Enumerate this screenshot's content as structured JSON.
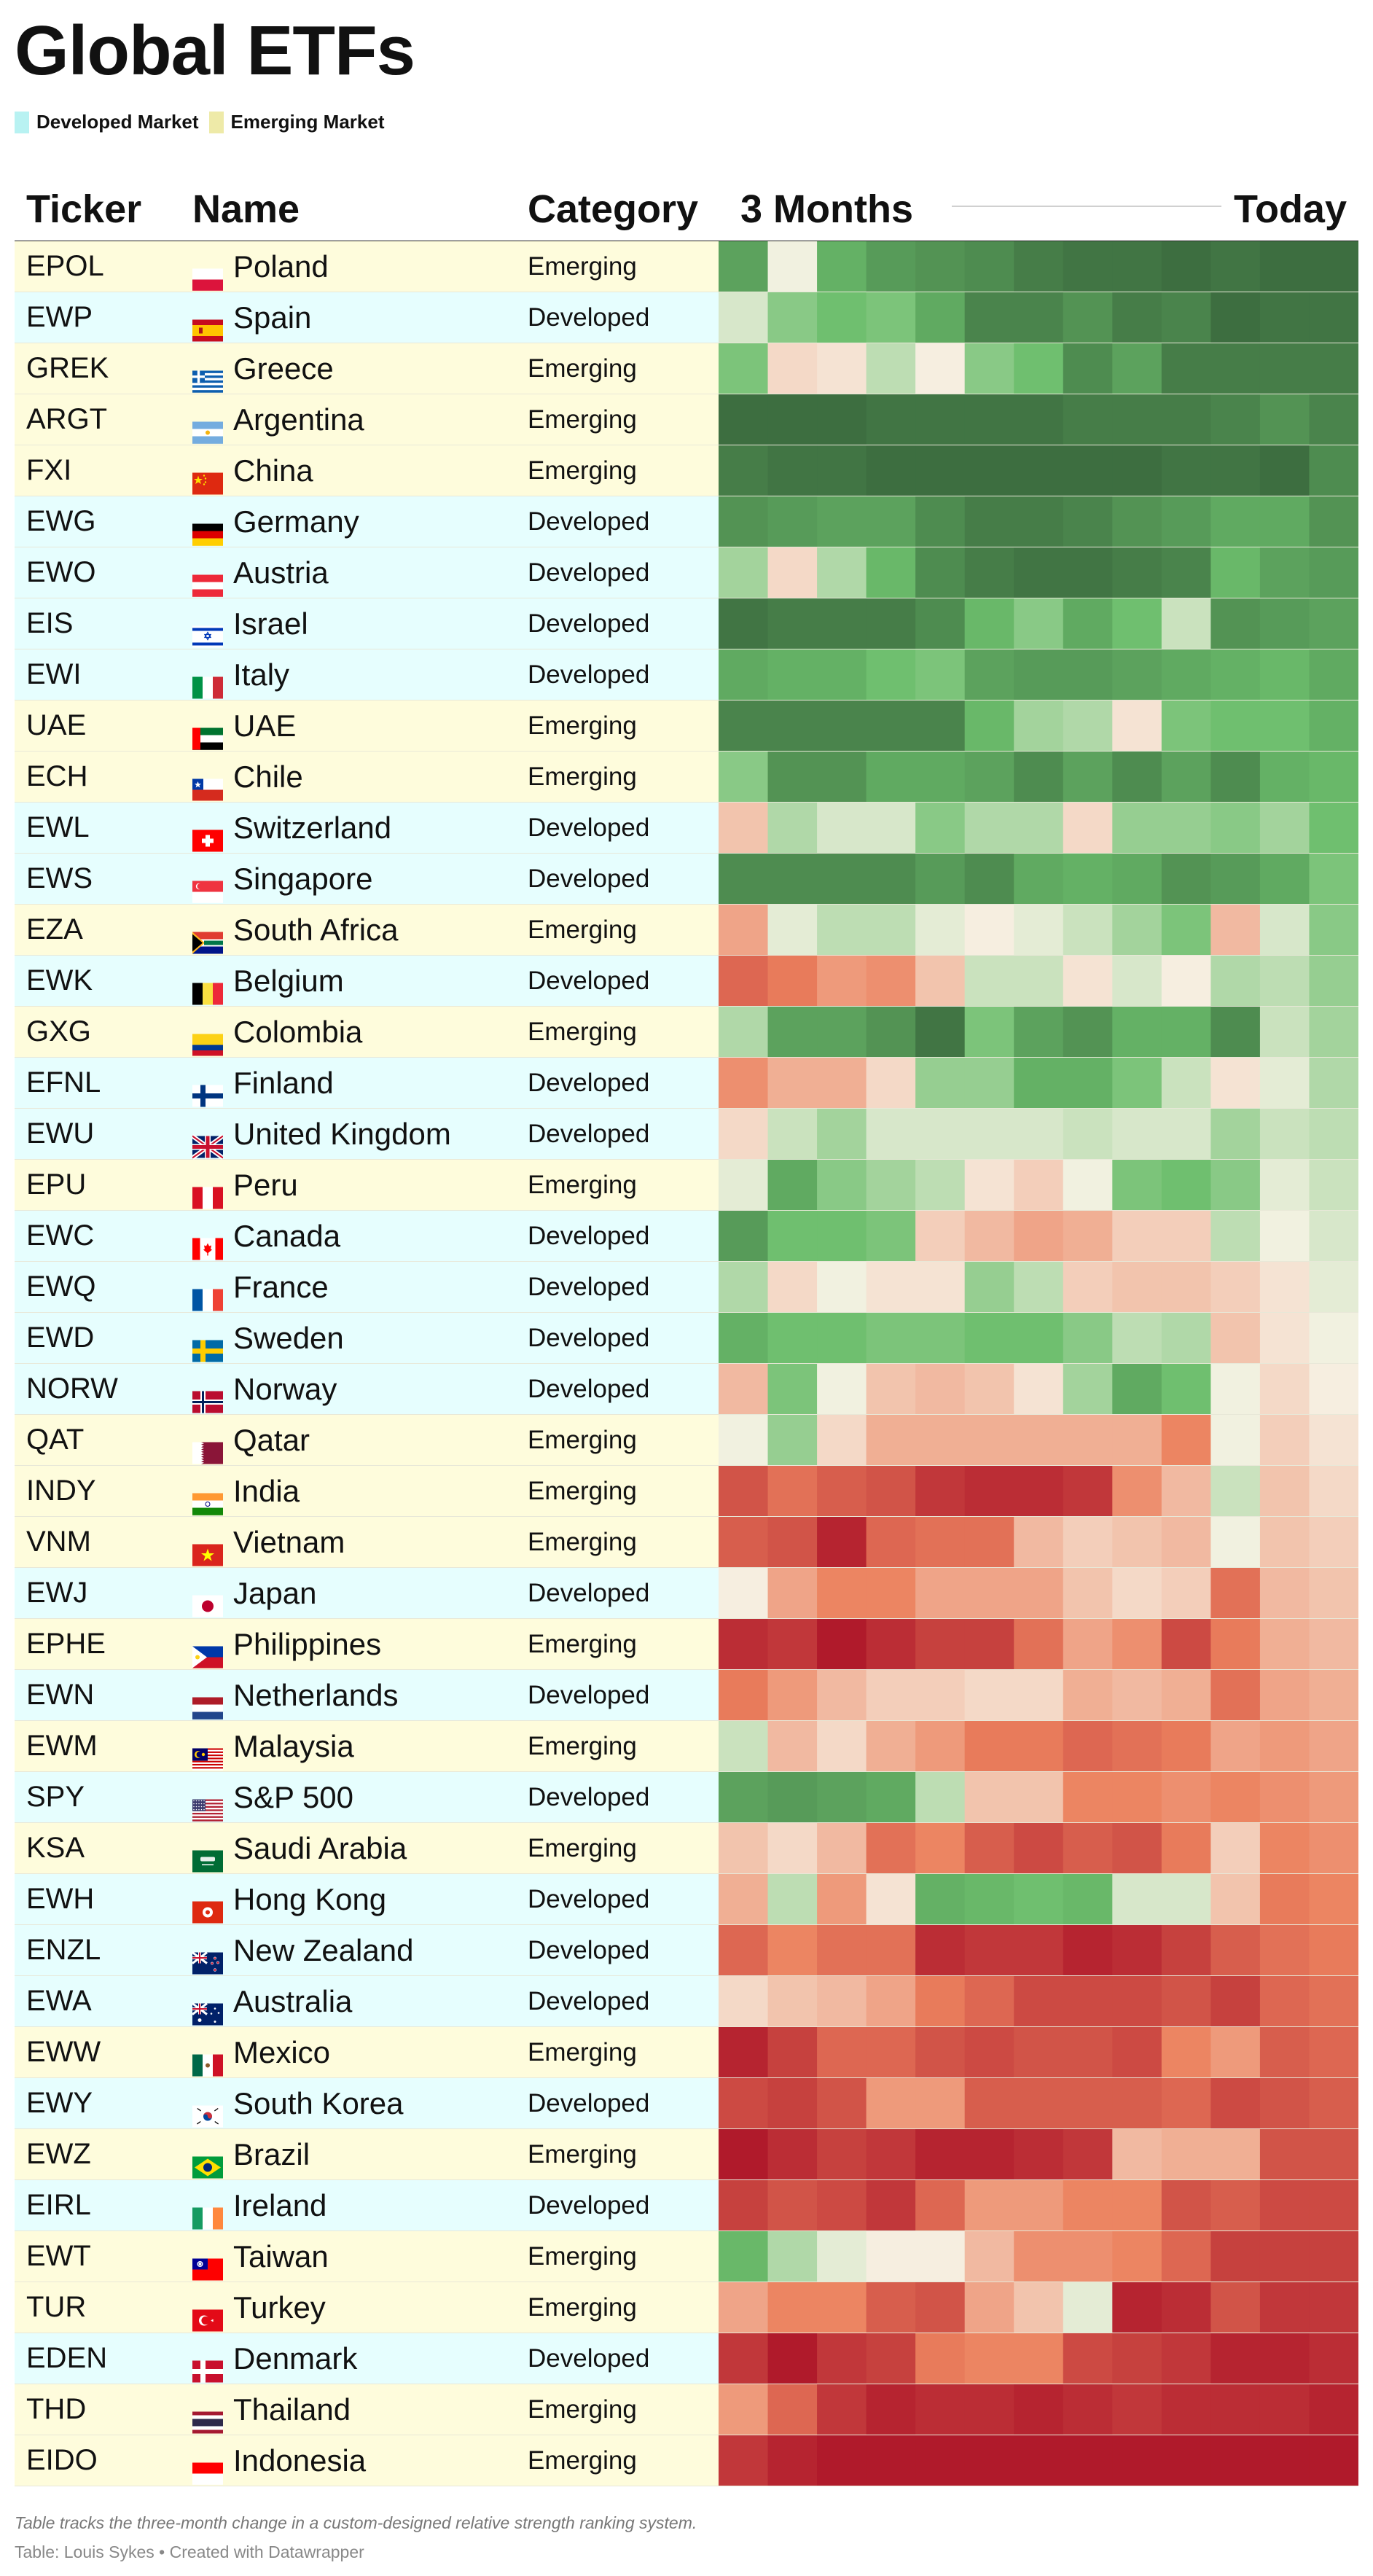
{
  "title": "Global ETFs",
  "legend": [
    {
      "label": "Developed Market",
      "color": "#e4fdfd"
    },
    {
      "label": "Emerging Market",
      "color": "#eeeaa8"
    }
  ],
  "colors": {
    "developed_row": "#e6fefe",
    "emerging_row": "#fefcdc"
  },
  "headers": {
    "ticker": "Ticker",
    "name": "Name",
    "category": "Category",
    "start": "3 Months",
    "end": "Today"
  },
  "caption": "Table tracks the three-month change in a custom-designed relative strength ranking system.",
  "source": "Table: Louis Sykes • Created with Datawrapper",
  "rows": [
    {
      "ticker": "EPOL",
      "name": "Poland",
      "category": "Emerging",
      "flag": "flag-poland"
    },
    {
      "ticker": "EWP",
      "name": "Spain",
      "category": "Developed",
      "flag": "flag-spain"
    },
    {
      "ticker": "GREK",
      "name": "Greece",
      "category": "Emerging",
      "flag": "flag-greece"
    },
    {
      "ticker": "ARGT",
      "name": "Argentina",
      "category": "Emerging",
      "flag": "flag-argentina"
    },
    {
      "ticker": "FXI",
      "name": "China",
      "category": "Emerging",
      "flag": "flag-china"
    },
    {
      "ticker": "EWG",
      "name": "Germany",
      "category": "Developed",
      "flag": "flag-germany"
    },
    {
      "ticker": "EWO",
      "name": "Austria",
      "category": "Developed",
      "flag": "flag-austria"
    },
    {
      "ticker": "EIS",
      "name": "Israel",
      "category": "Developed",
      "flag": "flag-israel"
    },
    {
      "ticker": "EWI",
      "name": "Italy",
      "category": "Developed",
      "flag": "flag-italy"
    },
    {
      "ticker": "UAE",
      "name": "UAE",
      "category": "Emerging",
      "flag": "flag-uae"
    },
    {
      "ticker": "ECH",
      "name": "Chile",
      "category": "Emerging",
      "flag": "flag-chile"
    },
    {
      "ticker": "EWL",
      "name": "Switzerland",
      "category": "Developed",
      "flag": "flag-switzerland"
    },
    {
      "ticker": "EWS",
      "name": "Singapore",
      "category": "Developed",
      "flag": "flag-singapore"
    },
    {
      "ticker": "EZA",
      "name": "South Africa",
      "category": "Emerging",
      "flag": "flag-south-africa"
    },
    {
      "ticker": "EWK",
      "name": "Belgium",
      "category": "Developed",
      "flag": "flag-belgium"
    },
    {
      "ticker": "GXG",
      "name": "Colombia",
      "category": "Emerging",
      "flag": "flag-colombia"
    },
    {
      "ticker": "EFNL",
      "name": "Finland",
      "category": "Developed",
      "flag": "flag-finland"
    },
    {
      "ticker": "EWU",
      "name": "United Kingdom",
      "category": "Developed",
      "flag": "flag-uk"
    },
    {
      "ticker": "EPU",
      "name": "Peru",
      "category": "Emerging",
      "flag": "flag-peru"
    },
    {
      "ticker": "EWC",
      "name": "Canada",
      "category": "Developed",
      "flag": "flag-canada"
    },
    {
      "ticker": "EWQ",
      "name": "France",
      "category": "Developed",
      "flag": "flag-france"
    },
    {
      "ticker": "EWD",
      "name": "Sweden",
      "category": "Developed",
      "flag": "flag-sweden"
    },
    {
      "ticker": "NORW",
      "name": "Norway",
      "category": "Developed",
      "flag": "flag-norway"
    },
    {
      "ticker": "QAT",
      "name": "Qatar",
      "category": "Emerging",
      "flag": "flag-qatar"
    },
    {
      "ticker": "INDY",
      "name": "India",
      "category": "Emerging",
      "flag": "flag-india"
    },
    {
      "ticker": "VNM",
      "name": "Vietnam",
      "category": "Emerging",
      "flag": "flag-vietnam"
    },
    {
      "ticker": "EWJ",
      "name": "Japan",
      "category": "Developed",
      "flag": "flag-japan"
    },
    {
      "ticker": "EPHE",
      "name": "Philippines",
      "category": "Emerging",
      "flag": "flag-philippines"
    },
    {
      "ticker": "EWN",
      "name": "Netherlands",
      "category": "Developed",
      "flag": "flag-netherlands"
    },
    {
      "ticker": "EWM",
      "name": "Malaysia",
      "category": "Emerging",
      "flag": "flag-malaysia"
    },
    {
      "ticker": "SPY",
      "name": "S&P 500",
      "category": "Developed",
      "flag": "flag-usa"
    },
    {
      "ticker": "KSA",
      "name": "Saudi Arabia",
      "category": "Emerging",
      "flag": "flag-saudi-arabia"
    },
    {
      "ticker": "EWH",
      "name": "Hong Kong",
      "category": "Developed",
      "flag": "flag-hong-kong"
    },
    {
      "ticker": "ENZL",
      "name": "New Zealand",
      "category": "Developed",
      "flag": "flag-new-zealand"
    },
    {
      "ticker": "EWA",
      "name": "Australia",
      "category": "Developed",
      "flag": "flag-australia"
    },
    {
      "ticker": "EWW",
      "name": "Mexico",
      "category": "Emerging",
      "flag": "flag-mexico"
    },
    {
      "ticker": "EWY",
      "name": "South Korea",
      "category": "Developed",
      "flag": "flag-south-korea"
    },
    {
      "ticker": "EWZ",
      "name": "Brazil",
      "category": "Emerging",
      "flag": "flag-brazil"
    },
    {
      "ticker": "EIRL",
      "name": "Ireland",
      "category": "Developed",
      "flag": "flag-ireland"
    },
    {
      "ticker": "EWT",
      "name": "Taiwan",
      "category": "Emerging",
      "flag": "flag-taiwan"
    },
    {
      "ticker": "TUR",
      "name": "Turkey",
      "category": "Emerging",
      "flag": "flag-turkey"
    },
    {
      "ticker": "EDEN",
      "name": "Denmark",
      "category": "Developed",
      "flag": "flag-denmark"
    },
    {
      "ticker": "THD",
      "name": "Thailand",
      "category": "Emerging",
      "flag": "flag-thailand"
    },
    {
      "ticker": "EIDO",
      "name": "Indonesia",
      "category": "Emerging",
      "flag": "flag-indonesia"
    }
  ],
  "chart_data": {
    "type": "heatmap",
    "x": [
      "3 Months",
      "",
      "",
      "",
      "",
      "",
      "",
      "",
      "",
      "",
      "",
      "",
      "Today"
    ],
    "y": [
      "EPOL",
      "EWP",
      "GREK",
      "ARGT",
      "FXI",
      "EWG",
      "EWO",
      "EIS",
      "EWI",
      "UAE",
      "ECH",
      "EWL",
      "EWS",
      "EZA",
      "EWK",
      "GXG",
      "EFNL",
      "EWU",
      "EPU",
      "EWC",
      "EWQ",
      "EWD",
      "NORW",
      "QAT",
      "INDY",
      "VNM",
      "EWJ",
      "EPHE",
      "EWN",
      "EWM",
      "SPY",
      "KSA",
      "EWH",
      "ENZL",
      "EWA",
      "EWW",
      "EWY",
      "EWZ",
      "EIRL",
      "EWT",
      "TUR",
      "EDEN",
      "THD",
      "EIDO"
    ],
    "scale": {
      "min": 1,
      "max": 44,
      "low_color": "#3d6e40",
      "mid_color": "#f7f3e6",
      "high_color": "#b01a2b"
    },
    "values": [
      [
        8,
        22,
        10,
        7,
        6,
        5,
        3,
        2,
        2,
        1,
        2,
        1,
        1
      ],
      [
        20,
        14,
        12,
        13,
        9,
        4,
        4,
        6,
        3,
        4,
        1,
        2,
        2
      ],
      [
        13,
        25,
        24,
        18,
        23,
        14,
        12,
        5,
        8,
        3,
        3,
        3,
        3
      ],
      [
        1,
        1,
        1,
        2,
        2,
        2,
        2,
        3,
        3,
        3,
        4,
        6,
        4
      ],
      [
        3,
        2,
        2,
        1,
        1,
        1,
        1,
        1,
        1,
        2,
        2,
        1,
        5
      ],
      [
        6,
        7,
        8,
        8,
        5,
        3,
        3,
        4,
        6,
        7,
        9,
        9,
        6
      ],
      [
        16,
        25,
        17,
        11,
        5,
        3,
        2,
        2,
        3,
        4,
        11,
        8,
        7
      ],
      [
        2,
        3,
        3,
        3,
        5,
        11,
        14,
        9,
        12,
        19,
        6,
        7,
        8
      ],
      [
        9,
        10,
        10,
        12,
        13,
        8,
        7,
        7,
        8,
        9,
        10,
        11,
        9
      ],
      [
        4,
        4,
        4,
        4,
        4,
        11,
        16,
        17,
        24,
        13,
        12,
        12,
        10
      ],
      [
        14,
        6,
        6,
        9,
        9,
        8,
        5,
        8,
        5,
        8,
        5,
        10,
        11
      ],
      [
        27,
        17,
        20,
        20,
        14,
        17,
        17,
        25,
        15,
        15,
        14,
        16,
        12
      ],
      [
        5,
        5,
        5,
        5,
        7,
        5,
        9,
        10,
        9,
        6,
        7,
        9,
        13
      ],
      [
        30,
        21,
        18,
        18,
        21,
        23,
        21,
        19,
        16,
        13,
        28,
        20,
        14
      ],
      [
        36,
        34,
        31,
        32,
        27,
        19,
        19,
        24,
        20,
        23,
        17,
        18,
        15
      ],
      [
        17,
        8,
        8,
        6,
        2,
        13,
        8,
        6,
        10,
        10,
        5,
        19,
        16
      ],
      [
        32,
        29,
        29,
        25,
        15,
        15,
        10,
        10,
        13,
        19,
        24,
        21,
        17
      ],
      [
        25,
        19,
        16,
        20,
        20,
        20,
        20,
        19,
        20,
        20,
        16,
        19,
        18
      ],
      [
        21,
        9,
        14,
        16,
        18,
        24,
        26,
        22,
        13,
        12,
        14,
        21,
        19
      ],
      [
        7,
        12,
        12,
        13,
        26,
        28,
        30,
        29,
        26,
        26,
        18,
        22,
        20
      ],
      [
        17,
        25,
        22,
        24,
        24,
        15,
        18,
        26,
        27,
        27,
        26,
        24,
        21
      ],
      [
        10,
        12,
        12,
        13,
        13,
        12,
        12,
        14,
        18,
        17,
        27,
        24,
        22
      ],
      [
        28,
        13,
        22,
        27,
        28,
        27,
        24,
        16,
        9,
        12,
        22,
        25,
        23
      ],
      [
        22,
        15,
        25,
        29,
        29,
        29,
        29,
        29,
        29,
        33,
        22,
        26,
        24
      ],
      [
        38,
        35,
        37,
        38,
        41,
        42,
        42,
        41,
        32,
        28,
        19,
        27,
        25
      ],
      [
        37,
        38,
        43,
        36,
        35,
        35,
        28,
        26,
        27,
        28,
        22,
        27,
        26
      ],
      [
        23,
        30,
        33,
        33,
        30,
        30,
        30,
        27,
        25,
        26,
        35,
        28,
        27
      ],
      [
        42,
        41,
        44,
        42,
        40,
        40,
        35,
        30,
        32,
        39,
        34,
        29,
        28
      ],
      [
        34,
        31,
        28,
        26,
        26,
        25,
        25,
        29,
        28,
        29,
        35,
        30,
        29
      ],
      [
        19,
        28,
        25,
        29,
        31,
        34,
        34,
        36,
        35,
        34,
        30,
        31,
        30
      ],
      [
        8,
        7,
        8,
        9,
        18,
        27,
        27,
        33,
        33,
        32,
        33,
        32,
        31
      ],
      [
        27,
        25,
        28,
        35,
        33,
        37,
        39,
        37,
        38,
        34,
        26,
        33,
        32
      ],
      [
        29,
        18,
        31,
        24,
        10,
        11,
        12,
        11,
        20,
        20,
        27,
        34,
        33
      ],
      [
        36,
        33,
        35,
        35,
        42,
        41,
        41,
        43,
        42,
        40,
        37,
        35,
        34
      ],
      [
        25,
        27,
        28,
        30,
        34,
        36,
        39,
        39,
        39,
        38,
        40,
        36,
        35
      ],
      [
        43,
        40,
        36,
        36,
        38,
        39,
        38,
        38,
        39,
        33,
        31,
        37,
        36
      ],
      [
        39,
        40,
        38,
        31,
        31,
        37,
        37,
        37,
        37,
        36,
        39,
        38,
        37
      ],
      [
        44,
        42,
        40,
        41,
        43,
        43,
        42,
        41,
        28,
        29,
        29,
        38,
        38
      ],
      [
        40,
        38,
        39,
        41,
        36,
        31,
        31,
        33,
        33,
        38,
        37,
        39,
        39
      ],
      [
        11,
        17,
        21,
        23,
        23,
        28,
        32,
        32,
        33,
        36,
        40,
        40,
        40
      ],
      [
        30,
        33,
        33,
        37,
        38,
        30,
        27,
        21,
        43,
        42,
        38,
        41,
        41
      ],
      [
        41,
        44,
        41,
        40,
        34,
        33,
        33,
        39,
        40,
        41,
        43,
        43,
        42
      ],
      [
        31,
        36,
        41,
        43,
        42,
        42,
        43,
        42,
        41,
        42,
        42,
        42,
        43
      ],
      [
        41,
        43,
        44,
        44,
        44,
        44,
        44,
        44,
        44,
        44,
        44,
        44,
        44
      ]
    ]
  }
}
